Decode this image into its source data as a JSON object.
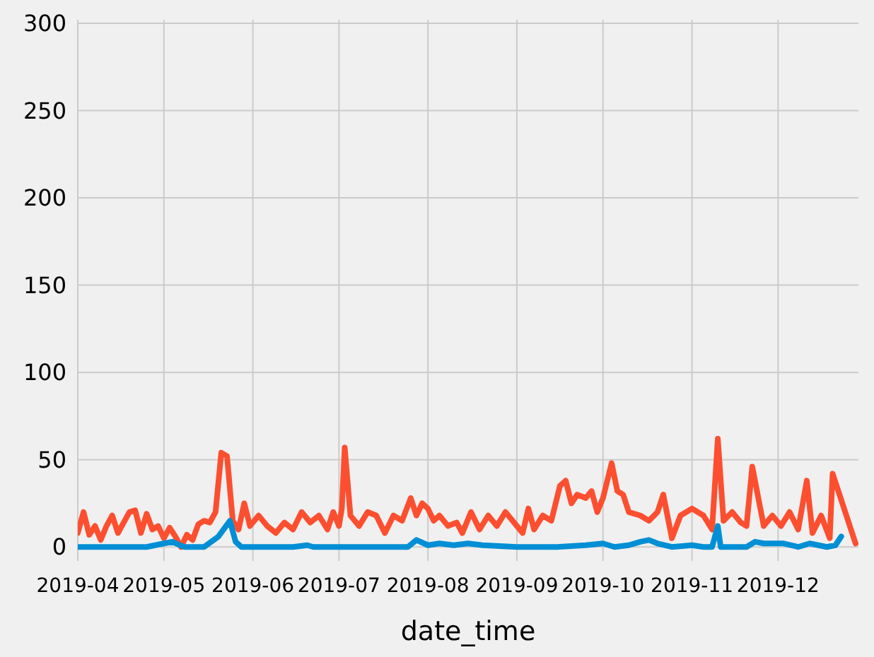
{
  "chart_data": {
    "type": "line",
    "xlabel": "date_time",
    "grid": true,
    "line_style": "solid",
    "marker": "none",
    "xlim": [
      "2019-04-01",
      "2019-12-29"
    ],
    "xticks": [
      {
        "value": "2019-04-01",
        "label": "2019-04"
      },
      {
        "value": "2019-05-01",
        "label": "2019-05"
      },
      {
        "value": "2019-06-01",
        "label": "2019-06"
      },
      {
        "value": "2019-07-01",
        "label": "2019-07"
      },
      {
        "value": "2019-08-01",
        "label": "2019-08"
      },
      {
        "value": "2019-09-01",
        "label": "2019-09"
      },
      {
        "value": "2019-10-01",
        "label": "2019-10"
      },
      {
        "value": "2019-11-01",
        "label": "2019-11"
      },
      {
        "value": "2019-12-01",
        "label": "2019-12"
      }
    ],
    "ylim": [
      -8,
      302
    ],
    "yticks": [
      0,
      50,
      100,
      150,
      200,
      250,
      300
    ],
    "series": [
      {
        "color": "#fc4f30",
        "x": [
          "2019-04-01",
          "2019-04-03",
          "2019-04-05",
          "2019-04-07",
          "2019-04-09",
          "2019-04-11",
          "2019-04-13",
          "2019-04-15",
          "2019-04-17",
          "2019-04-19",
          "2019-04-21",
          "2019-04-23",
          "2019-04-25",
          "2019-04-27",
          "2019-04-29",
          "2019-05-01",
          "2019-05-03",
          "2019-05-05",
          "2019-05-07",
          "2019-05-09",
          "2019-05-11",
          "2019-05-13",
          "2019-05-15",
          "2019-05-17",
          "2019-05-19",
          "2019-05-21",
          "2019-05-23",
          "2019-05-25",
          "2019-05-27",
          "2019-05-29",
          "2019-05-31",
          "2019-06-03",
          "2019-06-06",
          "2019-06-09",
          "2019-06-12",
          "2019-06-15",
          "2019-06-18",
          "2019-06-21",
          "2019-06-24",
          "2019-06-27",
          "2019-06-29",
          "2019-07-01",
          "2019-07-02",
          "2019-07-03",
          "2019-07-05",
          "2019-07-08",
          "2019-07-11",
          "2019-07-14",
          "2019-07-17",
          "2019-07-20",
          "2019-07-23",
          "2019-07-26",
          "2019-07-28",
          "2019-07-30",
          "2019-08-01",
          "2019-08-03",
          "2019-08-05",
          "2019-08-08",
          "2019-08-11",
          "2019-08-13",
          "2019-08-16",
          "2019-08-19",
          "2019-08-22",
          "2019-08-25",
          "2019-08-28",
          "2019-08-31",
          "2019-09-03",
          "2019-09-05",
          "2019-09-07",
          "2019-09-10",
          "2019-09-13",
          "2019-09-16",
          "2019-09-18",
          "2019-09-20",
          "2019-09-22",
          "2019-09-25",
          "2019-09-27",
          "2019-09-29",
          "2019-10-01",
          "2019-10-04",
          "2019-10-06",
          "2019-10-08",
          "2019-10-10",
          "2019-10-14",
          "2019-10-17",
          "2019-10-20",
          "2019-10-22",
          "2019-10-25",
          "2019-10-28",
          "2019-11-01",
          "2019-11-05",
          "2019-11-08",
          "2019-11-10",
          "2019-11-12",
          "2019-11-15",
          "2019-11-18",
          "2019-11-20",
          "2019-11-22",
          "2019-11-26",
          "2019-11-29",
          "2019-12-02",
          "2019-12-05",
          "2019-12-08",
          "2019-12-11",
          "2019-12-13",
          "2019-12-16",
          "2019-12-19",
          "2019-12-20",
          "2019-12-28"
        ],
        "values": [
          8,
          20,
          7,
          12,
          4,
          12,
          18,
          8,
          14,
          20,
          21,
          8,
          19,
          10,
          12,
          5,
          11,
          6,
          0,
          7,
          4,
          13,
          15,
          14,
          20,
          54,
          52,
          15,
          10,
          25,
          12,
          18,
          12,
          8,
          14,
          10,
          20,
          14,
          18,
          10,
          20,
          12,
          22,
          57,
          18,
          12,
          20,
          18,
          8,
          18,
          15,
          28,
          18,
          25,
          22,
          15,
          18,
          12,
          14,
          8,
          20,
          10,
          18,
          12,
          20,
          14,
          8,
          22,
          10,
          18,
          15,
          35,
          38,
          25,
          30,
          28,
          32,
          20,
          28,
          48,
          32,
          30,
          20,
          18,
          15,
          20,
          30,
          5,
          18,
          22,
          18,
          10,
          62,
          15,
          20,
          14,
          12,
          46,
          12,
          18,
          12,
          20,
          10,
          38,
          8,
          18,
          5,
          42,
          2
        ]
      },
      {
        "color": "#008fd5",
        "x": [
          "2019-04-01",
          "2019-04-25",
          "2019-05-01",
          "2019-05-04",
          "2019-05-08",
          "2019-05-15",
          "2019-05-20",
          "2019-05-24",
          "2019-05-26",
          "2019-05-28",
          "2019-06-15",
          "2019-06-20",
          "2019-06-22",
          "2019-07-25",
          "2019-07-28",
          "2019-08-01",
          "2019-08-05",
          "2019-08-10",
          "2019-08-15",
          "2019-08-20",
          "2019-09-01",
          "2019-09-15",
          "2019-09-25",
          "2019-10-01",
          "2019-10-05",
          "2019-10-10",
          "2019-10-14",
          "2019-10-17",
          "2019-10-20",
          "2019-10-25",
          "2019-11-01",
          "2019-11-05",
          "2019-11-08",
          "2019-11-10",
          "2019-11-11",
          "2019-11-20",
          "2019-11-23",
          "2019-11-26",
          "2019-12-03",
          "2019-12-08",
          "2019-12-12",
          "2019-12-15",
          "2019-12-18",
          "2019-12-21",
          "2019-12-23"
        ],
        "values": [
          0,
          0,
          2,
          3,
          0,
          0,
          6,
          15,
          3,
          0,
          0,
          1,
          0,
          0,
          4,
          1,
          2,
          1,
          2,
          1,
          0,
          0,
          1,
          2,
          0,
          1,
          3,
          4,
          2,
          0,
          1,
          0,
          0,
          12,
          0,
          0,
          3,
          2,
          2,
          0,
          2,
          1,
          0,
          1,
          6
        ]
      }
    ]
  }
}
